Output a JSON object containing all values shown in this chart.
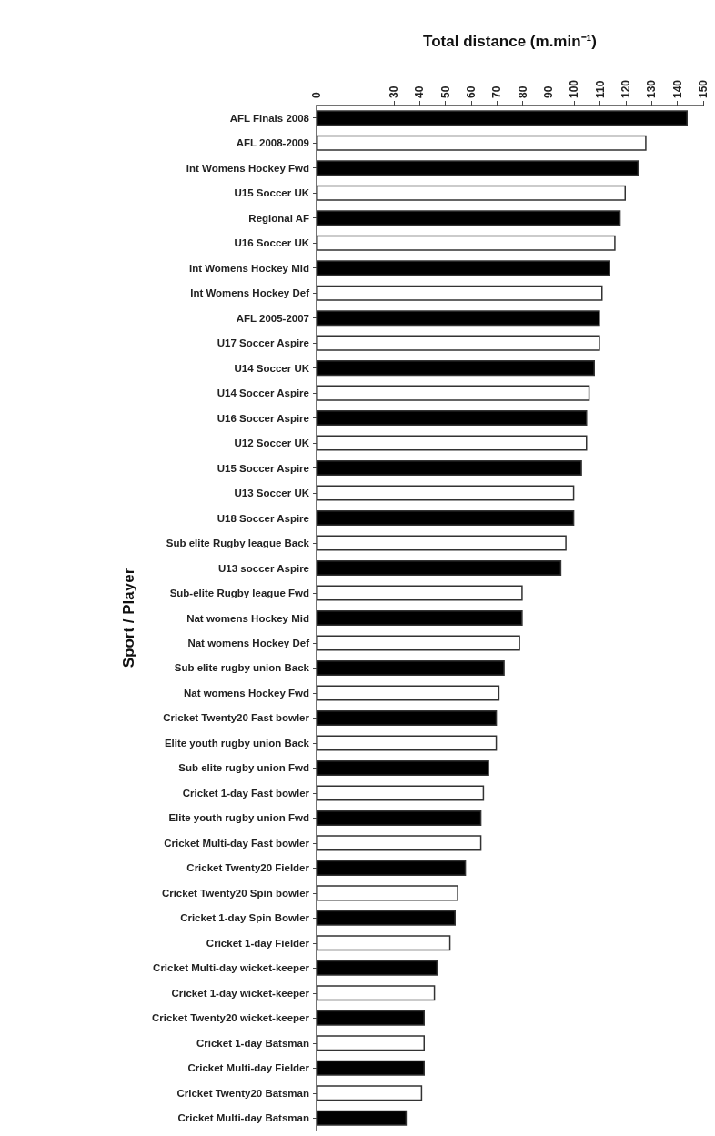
{
  "chart_data": {
    "type": "bar",
    "orientation": "horizontal",
    "xlabel": "Total distance (m.min⁻¹)",
    "ylabel": "Sport / Player",
    "categories": [
      "AFL Finals 2008",
      "AFL 2008-2009",
      "Int Womens Hockey Fwd",
      "U15 Soccer UK",
      "Regional AF",
      "U16 Soccer UK",
      "Int Womens Hockey Mid",
      "Int Womens Hockey Def",
      "AFL 2005-2007",
      "U17 Soccer Aspire",
      "U14 Soccer UK",
      "U14 Soccer Aspire",
      "U16 Soccer Aspire",
      "U12 Soccer UK",
      "U15 Soccer Aspire",
      "U13 Soccer UK",
      "U18 Soccer Aspire",
      "Sub elite Rugby league Back",
      "U13 soccer Aspire",
      "Sub-elite Rugby league Fwd",
      "Nat womens Hockey Mid",
      "Nat womens Hockey Def",
      "Sub elite rugby union Back",
      "Nat womens Hockey Fwd",
      "Cricket Twenty20 Fast bowler",
      "Elite youth rugby union Back",
      "Sub elite rugby union Fwd",
      "Cricket 1-day Fast bowler",
      "Elite youth rugby union Fwd",
      "Cricket Multi-day Fast bowler",
      "Cricket Twenty20 Fielder",
      "Cricket Twenty20 Spin bowler",
      "Cricket 1-day Spin Bowler",
      "Cricket 1-day Fielder",
      "Cricket Multi-day wicket-keeper",
      "Cricket 1-day wicket-keeper",
      "Cricket Twenty20 wicket-keeper",
      "Cricket 1-day Batsman",
      "Cricket Multi-day Fielder",
      "Cricket Twenty20 Batsman",
      "Cricket Multi-day Batsman"
    ],
    "values": [
      144,
      128,
      125,
      120,
      118,
      116,
      114,
      111,
      110,
      110,
      108,
      106,
      105,
      105,
      103,
      100,
      100,
      97,
      95,
      80,
      80,
      79,
      73,
      71,
      70,
      70,
      67,
      65,
      64,
      64,
      58,
      55,
      54,
      52,
      47,
      46,
      42,
      42,
      42,
      41,
      35
    ],
    "colors": [
      "#000000",
      "#ffffff",
      "#000000",
      "#ffffff",
      "#000000",
      "#ffffff",
      "#000000",
      "#ffffff",
      "#000000",
      "#ffffff",
      "#000000",
      "#ffffff",
      "#000000",
      "#ffffff",
      "#000000",
      "#ffffff",
      "#000000",
      "#ffffff",
      "#000000",
      "#ffffff",
      "#000000",
      "#ffffff",
      "#000000",
      "#ffffff",
      "#000000",
      "#ffffff",
      "#000000",
      "#ffffff",
      "#000000",
      "#ffffff",
      "#000000",
      "#ffffff",
      "#000000",
      "#ffffff",
      "#000000",
      "#ffffff",
      "#000000",
      "#ffffff",
      "#000000",
      "#ffffff",
      "#000000"
    ],
    "xlim": [
      0,
      150
    ],
    "xticks": [
      0,
      30,
      40,
      50,
      60,
      70,
      80,
      90,
      100,
      110,
      120,
      130,
      140,
      150
    ]
  }
}
